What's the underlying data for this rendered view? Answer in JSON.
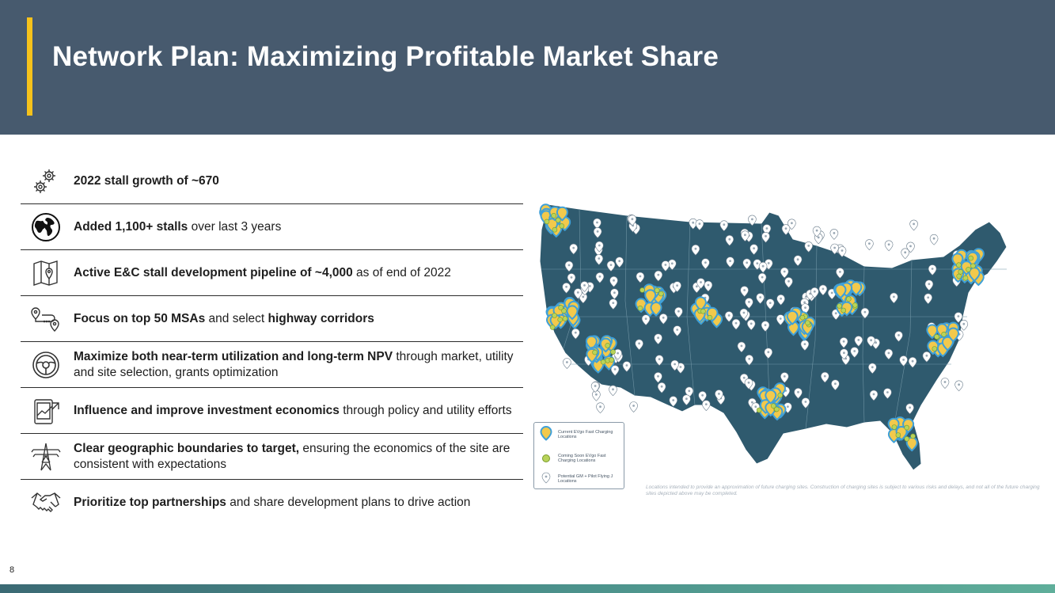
{
  "header": {
    "title": "Network Plan: Maximizing Profitable Market Share"
  },
  "items": [
    {
      "icon": "gears-icon",
      "parts": [
        {
          "text": "2022 stall growth of ~670",
          "bold": true
        }
      ]
    },
    {
      "icon": "globe-icon",
      "parts": [
        {
          "text": "Added 1,100+ stalls",
          "bold": true
        },
        {
          "text": " over last 3 years",
          "bold": false
        }
      ]
    },
    {
      "icon": "map-pin-icon",
      "parts": [
        {
          "text": "Active E&C stall development pipeline of ~4,000",
          "bold": true
        },
        {
          "text": " as of end of 2022",
          "bold": false
        }
      ]
    },
    {
      "icon": "route-icon",
      "parts": [
        {
          "text": "Focus on top 50 MSAs",
          "bold": true
        },
        {
          "text": " and select ",
          "bold": false
        },
        {
          "text": "highway corridors",
          "bold": true
        }
      ]
    },
    {
      "icon": "steering-wheel-icon",
      "parts": [
        {
          "text": "Maximize both near-term utilization and long-term NPV",
          "bold": true
        },
        {
          "text": " through market, utility and site selection, grants optimization",
          "bold": false
        }
      ]
    },
    {
      "icon": "tablet-chart-icon",
      "parts": [
        {
          "text": "Influence and improve investment economics",
          "bold": true
        },
        {
          "text": " through policy and utility efforts",
          "bold": false
        }
      ]
    },
    {
      "icon": "power-tower-icon",
      "parts": [
        {
          "text": "Clear geographic boundaries to target,",
          "bold": true
        },
        {
          "text": " ensuring the economics of the site are consistent with expectations",
          "bold": false
        }
      ]
    },
    {
      "icon": "handshake-icon",
      "parts": [
        {
          "text": "Prioritize top partnerships",
          "bold": true
        },
        {
          "text": " and share development plans to drive action",
          "bold": false
        }
      ]
    }
  ],
  "legend": {
    "current": "Current EVgo Fast Charging Locations",
    "coming_soon": "Coming Soon EVgo Fast Charging Locations",
    "potential": "Potential GM + Pilot Flying J Locations"
  },
  "disclaimer": "Locations intended to provide an approximation of future charging sites. Construction of charging sites is subject to various risks and delays, and not all of the future charging sites depicted above may be completed.",
  "page_number": "8",
  "colors": {
    "header_bg": "#475a6e",
    "accent": "#f6c21b",
    "map_fill": "#2f5a6e",
    "current_pin": "#f2c94c",
    "current_ring": "#3fa0d8",
    "coming_soon": "#b8d35a",
    "potential_pin": "#ffffff"
  }
}
